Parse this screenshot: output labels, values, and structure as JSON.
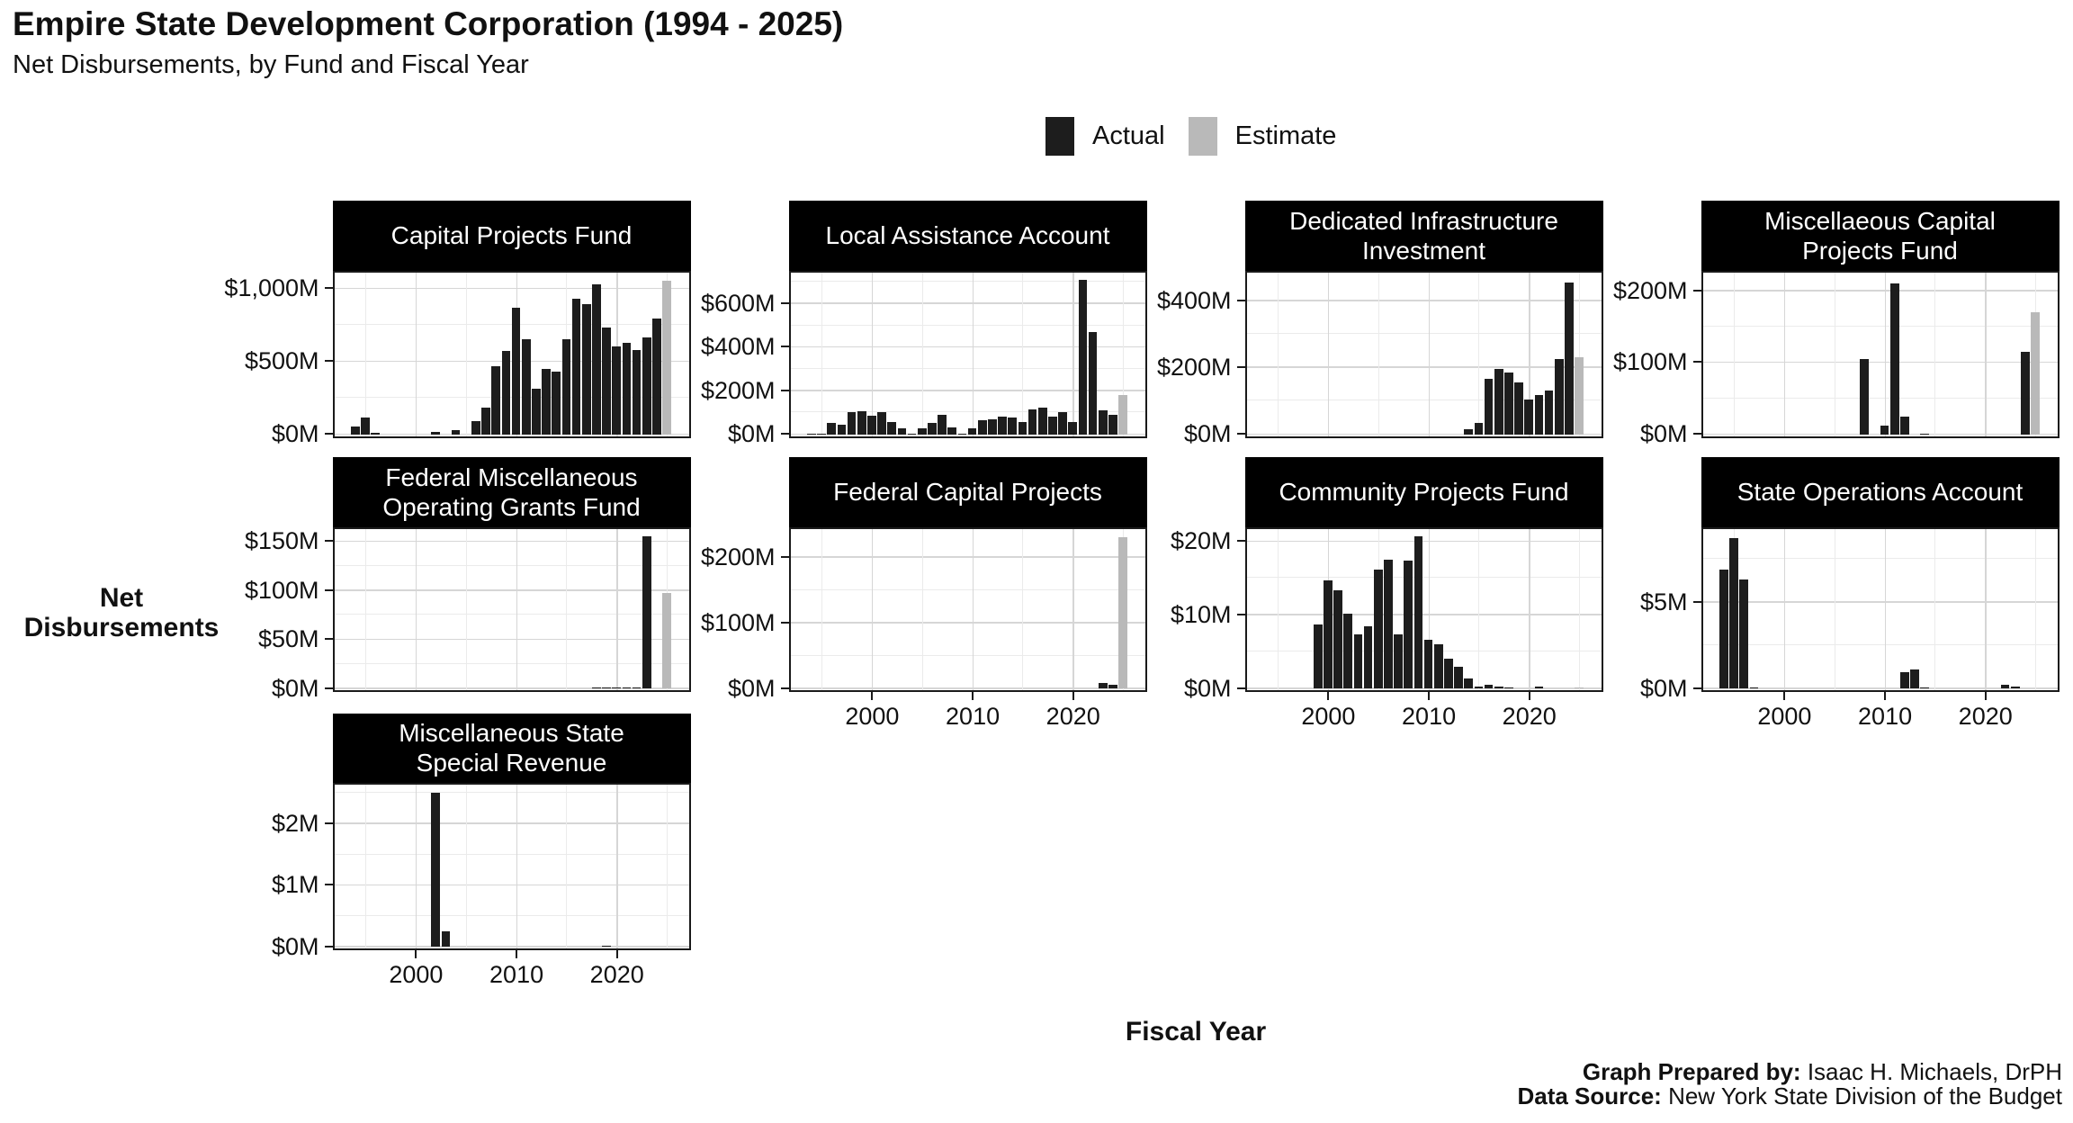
{
  "header": {
    "title": "Empire State Development Corporation (1994 - 2025)",
    "subtitle": "Net Disbursements, by Fund and Fiscal Year"
  },
  "legend": {
    "items": [
      {
        "label": "Actual",
        "color": "#1d1d1d"
      },
      {
        "label": "Estimate",
        "color": "#b9b9b9"
      }
    ]
  },
  "axes": {
    "y_label_line1": "Net",
    "y_label_line2": "Disbursements",
    "x_label": "Fiscal Year",
    "x_major_ticks": [
      {
        "v": 2000,
        "label": "2000"
      },
      {
        "v": 2010,
        "label": "2010"
      },
      {
        "v": 2020,
        "label": "2020"
      }
    ],
    "x_minor_ticks": [
      1995,
      2005,
      2015,
      2025
    ]
  },
  "footer": {
    "prepared_by_label": "Graph Prepared by:",
    "prepared_by": " Isaac H. Michaels, DrPH",
    "source_label": "Data Source:",
    "source": " New York State Division of the Budget"
  },
  "colors": {
    "actual": "#1d1d1d",
    "estimate": "#b9b9b9",
    "strip_bg": "#000000",
    "strip_text": "#ffffff",
    "grid_major": "#d6d6d6",
    "grid_minor": "#ebebeb",
    "panel_border": "#1a1a1a"
  },
  "chart_data": {
    "type": "bar",
    "title": "Empire State Development Corporation (1994 - 2025)",
    "subtitle": "Net Disbursements, by Fund and Fiscal Year",
    "xlabel": "Fiscal Year",
    "ylabel": "Net Disbursements",
    "x_range_years": [
      1994,
      2025
    ],
    "estimate_year": 2025,
    "years": [
      1994,
      1995,
      1996,
      1997,
      1998,
      1999,
      2000,
      2001,
      2002,
      2003,
      2004,
      2005,
      2006,
      2007,
      2008,
      2009,
      2010,
      2011,
      2012,
      2013,
      2014,
      2015,
      2016,
      2017,
      2018,
      2019,
      2020,
      2021,
      2022,
      2023,
      2024,
      2025
    ],
    "units": "millions USD",
    "facets": [
      {
        "title_lines": [
          "Capital Projects Fund"
        ],
        "col": 0,
        "row": 0,
        "show_x_labels": false,
        "ymax": 1105,
        "yticks": [
          {
            "v": 0,
            "label": "$0M"
          },
          {
            "v": 500,
            "label": "$500M"
          },
          {
            "v": 1000,
            "label": "$1,000M"
          }
        ],
        "values": [
          55,
          115,
          10,
          0,
          0,
          0,
          0,
          0,
          18,
          0,
          25,
          0,
          90,
          180,
          465,
          570,
          870,
          650,
          310,
          445,
          430,
          650,
          930,
          895,
          1030,
          730,
          605,
          625,
          575,
          665,
          795,
          1050
        ]
      },
      {
        "title_lines": [
          "Local Assistance Account"
        ],
        "col": 1,
        "row": 0,
        "show_x_labels": false,
        "ymax": 740,
        "yticks": [
          {
            "v": 0,
            "label": "$0M"
          },
          {
            "v": 200,
            "label": "$200M"
          },
          {
            "v": 400,
            "label": "$400M"
          },
          {
            "v": 600,
            "label": "$600M"
          }
        ],
        "values": [
          2,
          3,
          50,
          45,
          100,
          105,
          85,
          100,
          55,
          25,
          3,
          25,
          50,
          90,
          30,
          3,
          25,
          65,
          70,
          80,
          75,
          55,
          115,
          120,
          80,
          100,
          55,
          710,
          470,
          110,
          90,
          180
        ]
      },
      {
        "title_lines": [
          "Dedicated Infrastructure",
          "Investment"
        ],
        "col": 2,
        "row": 0,
        "show_x_labels": false,
        "ymax": 483,
        "yticks": [
          {
            "v": 0,
            "label": "$0M"
          },
          {
            "v": 200,
            "label": "$200M"
          },
          {
            "v": 400,
            "label": "$400M"
          }
        ],
        "values": [
          0,
          0,
          0,
          0,
          0,
          0,
          0,
          0,
          0,
          0,
          0,
          0,
          0,
          0,
          0,
          0,
          0,
          0,
          0,
          0,
          15,
          35,
          165,
          197,
          185,
          155,
          105,
          118,
          130,
          225,
          455,
          230
        ]
      },
      {
        "title_lines": [
          "Miscellaeous Capital",
          "Projects Fund"
        ],
        "col": 3,
        "row": 0,
        "show_x_labels": false,
        "ymax": 225,
        "yticks": [
          {
            "v": 0,
            "label": "$0M"
          },
          {
            "v": 100,
            "label": "$100M"
          },
          {
            "v": 200,
            "label": "$200M"
          }
        ],
        "values": [
          0,
          0,
          0,
          0,
          0,
          0,
          0,
          0,
          0,
          0,
          0,
          0,
          0,
          0,
          105,
          0,
          12,
          210,
          25,
          0,
          1,
          0,
          0,
          0,
          0,
          0,
          0,
          0,
          0,
          0,
          115,
          170
        ]
      },
      {
        "title_lines": [
          "Federal Miscellaneous",
          "Operating Grants Fund"
        ],
        "col": 0,
        "row": 1,
        "show_x_labels": false,
        "ymax": 162,
        "yticks": [
          {
            "v": 0,
            "label": "$0M"
          },
          {
            "v": 50,
            "label": "$50M"
          },
          {
            "v": 100,
            "label": "$100M"
          },
          {
            "v": 150,
            "label": "$150M"
          }
        ],
        "values": [
          0,
          0,
          0,
          0,
          0,
          0,
          0,
          0,
          0,
          0,
          0,
          0,
          0,
          0,
          0,
          0,
          0,
          0,
          0,
          0,
          0,
          0,
          0,
          0,
          1,
          1,
          1,
          1,
          1,
          155,
          0,
          97
        ]
      },
      {
        "title_lines": [
          "Federal Capital Projects"
        ],
        "col": 1,
        "row": 1,
        "show_x_labels": true,
        "ymax": 242,
        "yticks": [
          {
            "v": 0,
            "label": "$0M"
          },
          {
            "v": 100,
            "label": "$100M"
          },
          {
            "v": 200,
            "label": "$200M"
          }
        ],
        "values": [
          0,
          0,
          0,
          0,
          0,
          0,
          0,
          0,
          0,
          0,
          0,
          0,
          0,
          0,
          0,
          0,
          0,
          0,
          0,
          0,
          0,
          0,
          0,
          0,
          0,
          0,
          0,
          0,
          0,
          8,
          5,
          230
        ]
      },
      {
        "title_lines": [
          "Community Projects Fund"
        ],
        "col": 2,
        "row": 1,
        "show_x_labels": true,
        "ymax": 21.6,
        "yticks": [
          {
            "v": 0,
            "label": "$0M"
          },
          {
            "v": 10,
            "label": "$10M"
          },
          {
            "v": 20,
            "label": "$20M"
          }
        ],
        "values": [
          0,
          0,
          0,
          0,
          0,
          8.7,
          14.7,
          13.4,
          10.2,
          7.3,
          8.4,
          16.2,
          17.5,
          7.4,
          17.4,
          20.7,
          6.6,
          6,
          4,
          3,
          1.4,
          0.3,
          0.5,
          0.3,
          0.15,
          0,
          0,
          0.2,
          0,
          0,
          0,
          0.15
        ]
      },
      {
        "title_lines": [
          "State Operations Account"
        ],
        "col": 3,
        "row": 1,
        "show_x_labels": true,
        "ymax": 9.2,
        "yticks": [
          {
            "v": 0,
            "label": "$0M"
          },
          {
            "v": 5,
            "label": "$5M"
          }
        ],
        "values": [
          6.9,
          8.7,
          6.3,
          0.07,
          0,
          0,
          0,
          0,
          0,
          0,
          0,
          0,
          0,
          0,
          0,
          0,
          0,
          0,
          0.95,
          1.1,
          0.06,
          0,
          0,
          0,
          0,
          0,
          0,
          0,
          0.2,
          0.12,
          0,
          0
        ]
      },
      {
        "title_lines": [
          "Miscellaneous State",
          "Special Revenue"
        ],
        "col": 0,
        "row": 2,
        "show_x_labels": true,
        "ymax": 2.62,
        "yticks": [
          {
            "v": 0,
            "label": "$0M"
          },
          {
            "v": 1,
            "label": "$1M"
          },
          {
            "v": 2,
            "label": "$2M"
          }
        ],
        "values": [
          0,
          0,
          0,
          0,
          0,
          0,
          0,
          0,
          2.5,
          0.25,
          0,
          0,
          0,
          0,
          0,
          0,
          0,
          0,
          0,
          0,
          0,
          0,
          0,
          0,
          0,
          0.02,
          0,
          0,
          0,
          0,
          0,
          0
        ]
      }
    ]
  }
}
